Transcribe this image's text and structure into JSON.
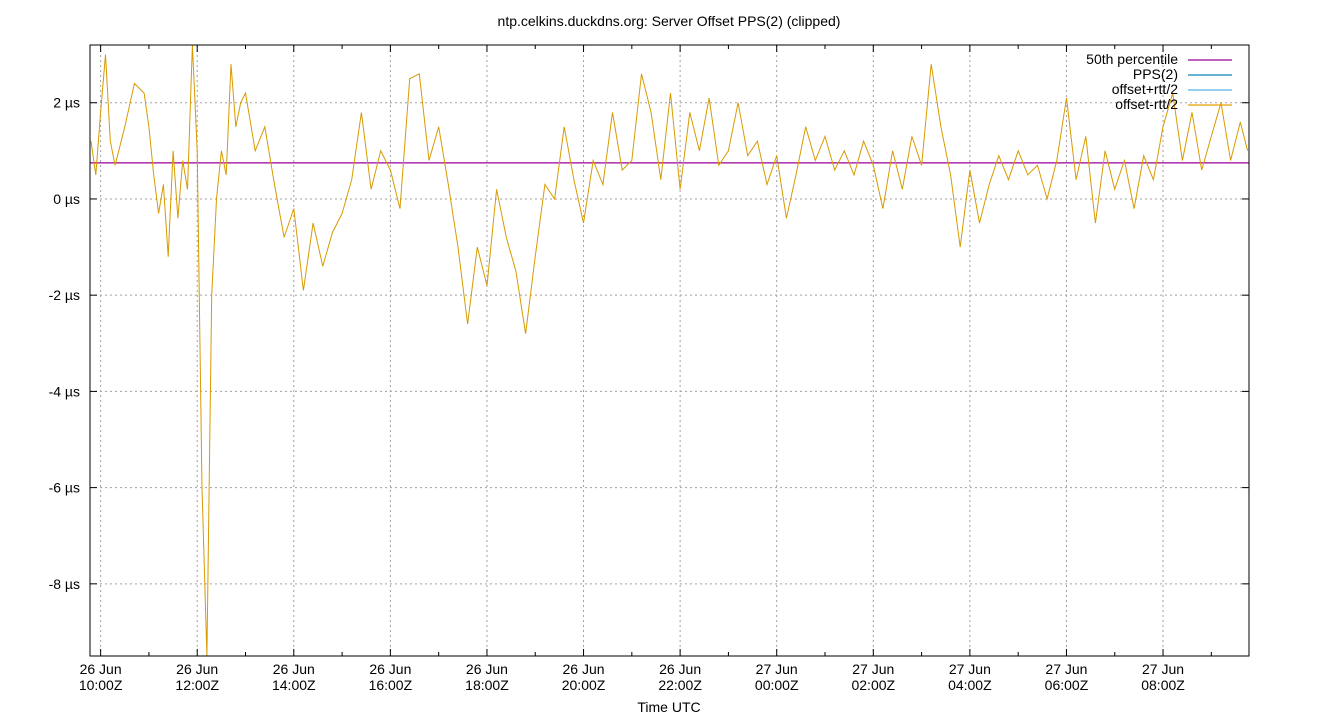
{
  "chart_data": {
    "type": "line",
    "title": "ntp.celkins.duckdns.org: Server Offset PPS(2) (clipped)",
    "xlabel": "Time UTC",
    "ylabel": "",
    "y_unit": "µs",
    "ylim": [
      -9.5,
      3.2
    ],
    "yticks": [
      {
        "value": 2,
        "label": "2 µs"
      },
      {
        "value": 0,
        "label": "0 µs"
      },
      {
        "value": -2,
        "label": "-2 µs"
      },
      {
        "value": -4,
        "label": "-4 µs"
      },
      {
        "value": -6,
        "label": "-6 µs"
      },
      {
        "value": -8,
        "label": "-8 µs"
      }
    ],
    "xlim_hours_from_26jun_00z": [
      9.78,
      33.78
    ],
    "xticks": [
      {
        "hours": 10,
        "line1": "26 Jun",
        "line2": "10:00Z"
      },
      {
        "hours": 12,
        "line1": "26 Jun",
        "line2": "12:00Z"
      },
      {
        "hours": 14,
        "line1": "26 Jun",
        "line2": "14:00Z"
      },
      {
        "hours": 16,
        "line1": "26 Jun",
        "line2": "16:00Z"
      },
      {
        "hours": 18,
        "line1": "26 Jun",
        "line2": "18:00Z"
      },
      {
        "hours": 20,
        "line1": "26 Jun",
        "line2": "20:00Z"
      },
      {
        "hours": 22,
        "line1": "26 Jun",
        "line2": "22:00Z"
      },
      {
        "hours": 24,
        "line1": "27 Jun",
        "line2": "00:00Z"
      },
      {
        "hours": 26,
        "line1": "27 Jun",
        "line2": "02:00Z"
      },
      {
        "hours": 28,
        "line1": "27 Jun",
        "line2": "04:00Z"
      },
      {
        "hours": 30,
        "line1": "27 Jun",
        "line2": "06:00Z"
      },
      {
        "hours": 32,
        "line1": "27 Jun",
        "line2": "08:00Z"
      }
    ],
    "grid": true,
    "legend_position": "top-right",
    "series": [
      {
        "name": "50th percentile",
        "color": "#990099",
        "kind": "hline",
        "value": 0.75
      },
      {
        "name": "PPS(2)",
        "color": "#0a84b3",
        "kind": "line",
        "x": [
          9.8,
          9.9,
          10.0,
          10.1,
          10.2,
          10.3,
          10.5,
          10.7,
          10.9,
          11.0,
          11.1,
          11.2,
          11.3,
          11.4,
          11.5,
          11.6,
          11.7,
          11.8,
          11.9,
          12.0,
          12.1,
          12.2,
          12.3,
          12.4,
          12.5,
          12.6,
          12.7,
          12.8,
          12.9,
          13.0,
          13.2,
          13.4,
          13.6,
          13.8,
          14.0,
          14.2,
          14.4,
          14.6,
          14.8,
          15.0,
          15.2,
          15.4,
          15.6,
          15.8,
          16.0,
          16.2,
          16.4,
          16.6,
          16.8,
          17.0,
          17.2,
          17.4,
          17.6,
          17.8,
          18.0,
          18.2,
          18.4,
          18.6,
          18.8,
          19.0,
          19.2,
          19.4,
          19.6,
          19.8,
          20.0,
          20.2,
          20.4,
          20.6,
          20.8,
          21.0,
          21.2,
          21.4,
          21.6,
          21.8,
          22.0,
          22.2,
          22.4,
          22.6,
          22.8,
          23.0,
          23.2,
          23.4,
          23.6,
          23.8,
          24.0,
          24.2,
          24.4,
          24.6,
          24.8,
          25.0,
          25.2,
          25.4,
          25.6,
          25.8,
          26.0,
          26.2,
          26.4,
          26.6,
          26.8,
          27.0,
          27.2,
          27.4,
          27.6,
          27.8,
          28.0,
          28.2,
          28.4,
          28.6,
          28.8,
          29.0,
          29.2,
          29.4,
          29.6,
          29.8,
          30.0,
          30.2,
          30.4,
          30.6,
          30.8,
          31.0,
          31.2,
          31.4,
          31.6,
          31.8,
          32.0,
          32.2,
          32.4,
          32.6,
          32.8,
          33.0,
          33.2,
          33.4,
          33.6,
          33.75
        ],
        "y": [
          1.2,
          0.5,
          1.8,
          3.0,
          1.2,
          0.7,
          1.5,
          2.4,
          2.2,
          1.5,
          0.5,
          -0.3,
          0.3,
          -1.2,
          1.0,
          -0.4,
          0.8,
          0.2,
          3.2,
          1.0,
          -6.0,
          -9.5,
          -2.0,
          0.0,
          1.0,
          0.5,
          2.8,
          1.5,
          2.0,
          2.2,
          1.0,
          1.5,
          0.3,
          -0.8,
          -0.2,
          -1.9,
          -0.5,
          -1.4,
          -0.7,
          -0.3,
          0.4,
          1.8,
          0.2,
          1.0,
          0.6,
          -0.2,
          2.5,
          2.6,
          0.8,
          1.5,
          0.3,
          -1.0,
          -2.6,
          -1.0,
          -1.8,
          0.2,
          -0.8,
          -1.5,
          -2.8,
          -1.2,
          0.3,
          0.0,
          1.5,
          0.4,
          -0.5,
          0.8,
          0.3,
          1.8,
          0.6,
          0.8,
          2.6,
          1.8,
          0.4,
          2.2,
          0.2,
          1.8,
          1.0,
          2.1,
          0.7,
          1.0,
          2.0,
          0.9,
          1.2,
          0.3,
          0.9,
          -0.4,
          0.5,
          1.5,
          0.8,
          1.3,
          0.6,
          1.0,
          0.5,
          1.2,
          0.7,
          -0.2,
          1.0,
          0.2,
          1.3,
          0.7,
          2.8,
          1.5,
          0.5,
          -1.0,
          0.6,
          -0.5,
          0.3,
          0.9,
          0.4,
          1.0,
          0.5,
          0.7,
          0.0,
          0.8,
          2.1,
          0.4,
          1.3,
          -0.5,
          1.0,
          0.2,
          0.8,
          -0.2,
          0.9,
          0.4,
          1.5,
          2.2,
          0.8,
          1.8,
          0.6,
          1.3,
          2.0,
          0.8,
          1.6,
          1.0
        ]
      },
      {
        "name": "offset+rtt/2",
        "color": "#56b4e9",
        "kind": "line",
        "x": [],
        "y": []
      },
      {
        "name": "offset-rtt/2",
        "color": "#e69f00",
        "kind": "line",
        "x": [],
        "y": []
      }
    ]
  }
}
